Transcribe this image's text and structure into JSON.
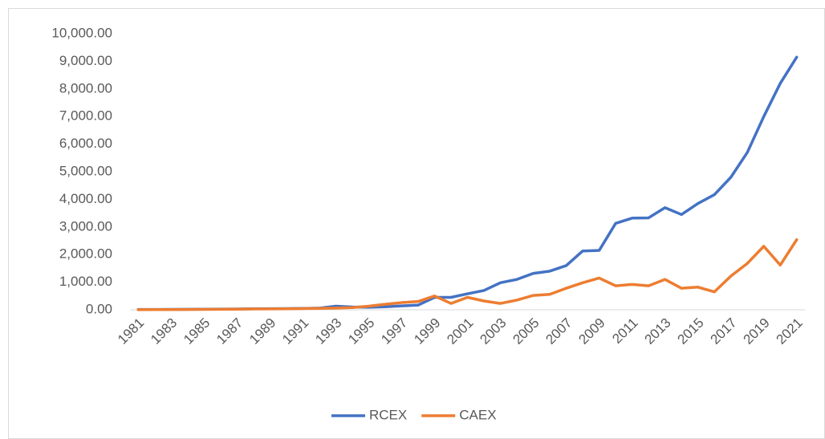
{
  "chart_data": {
    "type": "line",
    "categories": [
      "1981",
      null,
      "1983",
      null,
      "1985",
      null,
      "1987",
      null,
      "1989",
      null,
      "1991",
      null,
      "1993",
      null,
      "1995",
      null,
      "1997",
      null,
      "1999",
      null,
      "2001",
      null,
      "2003",
      null,
      "2005",
      null,
      "2007",
      null,
      "2009",
      null,
      "2011",
      null,
      "2013",
      null,
      "2015",
      null,
      "2017",
      null,
      "2019",
      null,
      "2021"
    ],
    "series": [
      {
        "name": "RCEX",
        "color": "#4472c4",
        "values": [
          10,
          12,
          15,
          18,
          20,
          25,
          30,
          35,
          40,
          45,
          50,
          60,
          130,
          100,
          90,
          110,
          140,
          170,
          450,
          450,
          580,
          700,
          980,
          1100,
          1320,
          1400,
          1600,
          2130,
          2150,
          3130,
          3320,
          3330,
          3700,
          3450,
          3850,
          4170,
          4800,
          5700,
          7000,
          8200,
          9150
        ]
      },
      {
        "name": "CAEX",
        "color": "#ed7d31",
        "values": [
          5,
          7,
          9,
          12,
          15,
          18,
          22,
          28,
          32,
          38,
          45,
          50,
          60,
          80,
          130,
          200,
          260,
          300,
          500,
          230,
          450,
          320,
          230,
          350,
          520,
          560,
          780,
          980,
          1150,
          870,
          920,
          870,
          1100,
          780,
          820,
          650,
          1220,
          1680,
          2300,
          1620,
          2540
        ]
      }
    ],
    "ylim": [
      0,
      10000
    ],
    "yticks": [
      {
        "value": 0,
        "label": "0.00"
      },
      {
        "value": 1000,
        "label": "1,000.00"
      },
      {
        "value": 2000,
        "label": "2,000.00"
      },
      {
        "value": 3000,
        "label": "3,000.00"
      },
      {
        "value": 4000,
        "label": "4,000.00"
      },
      {
        "value": 5000,
        "label": "5,000.00"
      },
      {
        "value": 6000,
        "label": "6,000.00"
      },
      {
        "value": 7000,
        "label": "7,000.00"
      },
      {
        "value": 8000,
        "label": "8,000.00"
      },
      {
        "value": 9000,
        "label": "9,000.00"
      },
      {
        "value": 10000,
        "label": "10,000.00"
      }
    ],
    "grid": false,
    "legend": "bottom"
  }
}
